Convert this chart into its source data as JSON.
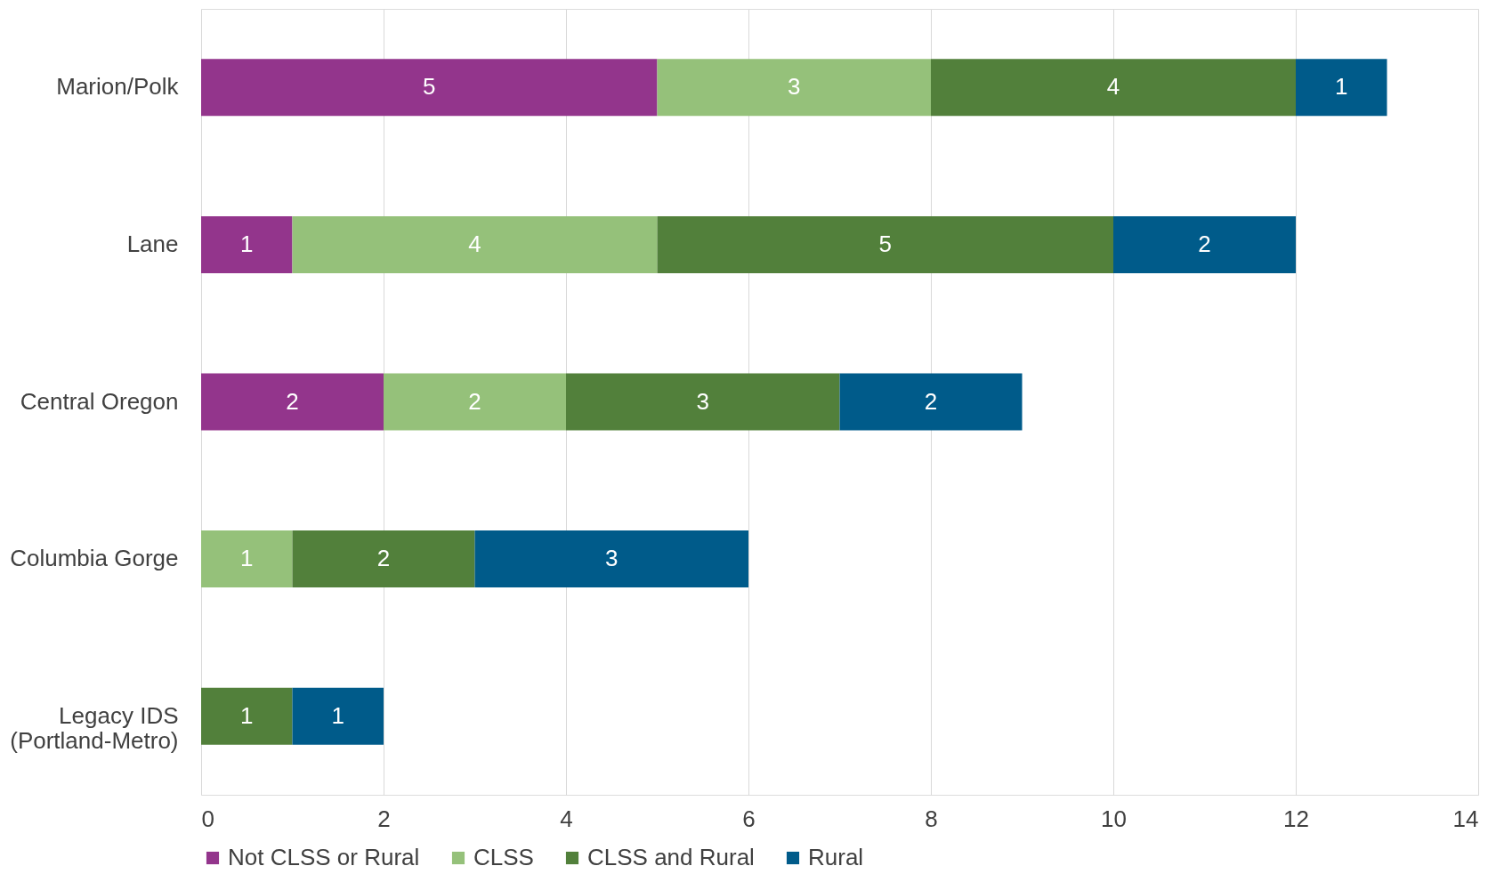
{
  "chart_data": {
    "type": "bar",
    "orientation": "horizontal",
    "stacked": true,
    "categories": [
      "Marion/Polk",
      "Lane",
      "Central Oregon",
      "Columbia Gorge",
      "Legacy IDS\n(Portland-Metro)"
    ],
    "series": [
      {
        "name": "Not CLSS or Rural",
        "color": "#93358c",
        "values": [
          5,
          1,
          2,
          null,
          null
        ]
      },
      {
        "name": "CLSS",
        "color": "#95c17a",
        "values": [
          3,
          4,
          2,
          1,
          null
        ]
      },
      {
        "name": "CLSS and Rural",
        "color": "#52803b",
        "values": [
          4,
          5,
          3,
          2,
          1
        ]
      },
      {
        "name": "Rural",
        "color": "#005b8a",
        "values": [
          1,
          2,
          2,
          3,
          1
        ]
      }
    ],
    "xlim": [
      0,
      14
    ],
    "xticks": [
      0,
      2,
      4,
      6,
      8,
      10,
      12,
      14
    ],
    "grid": "x",
    "legend": "bottom",
    "data_labels": true
  }
}
